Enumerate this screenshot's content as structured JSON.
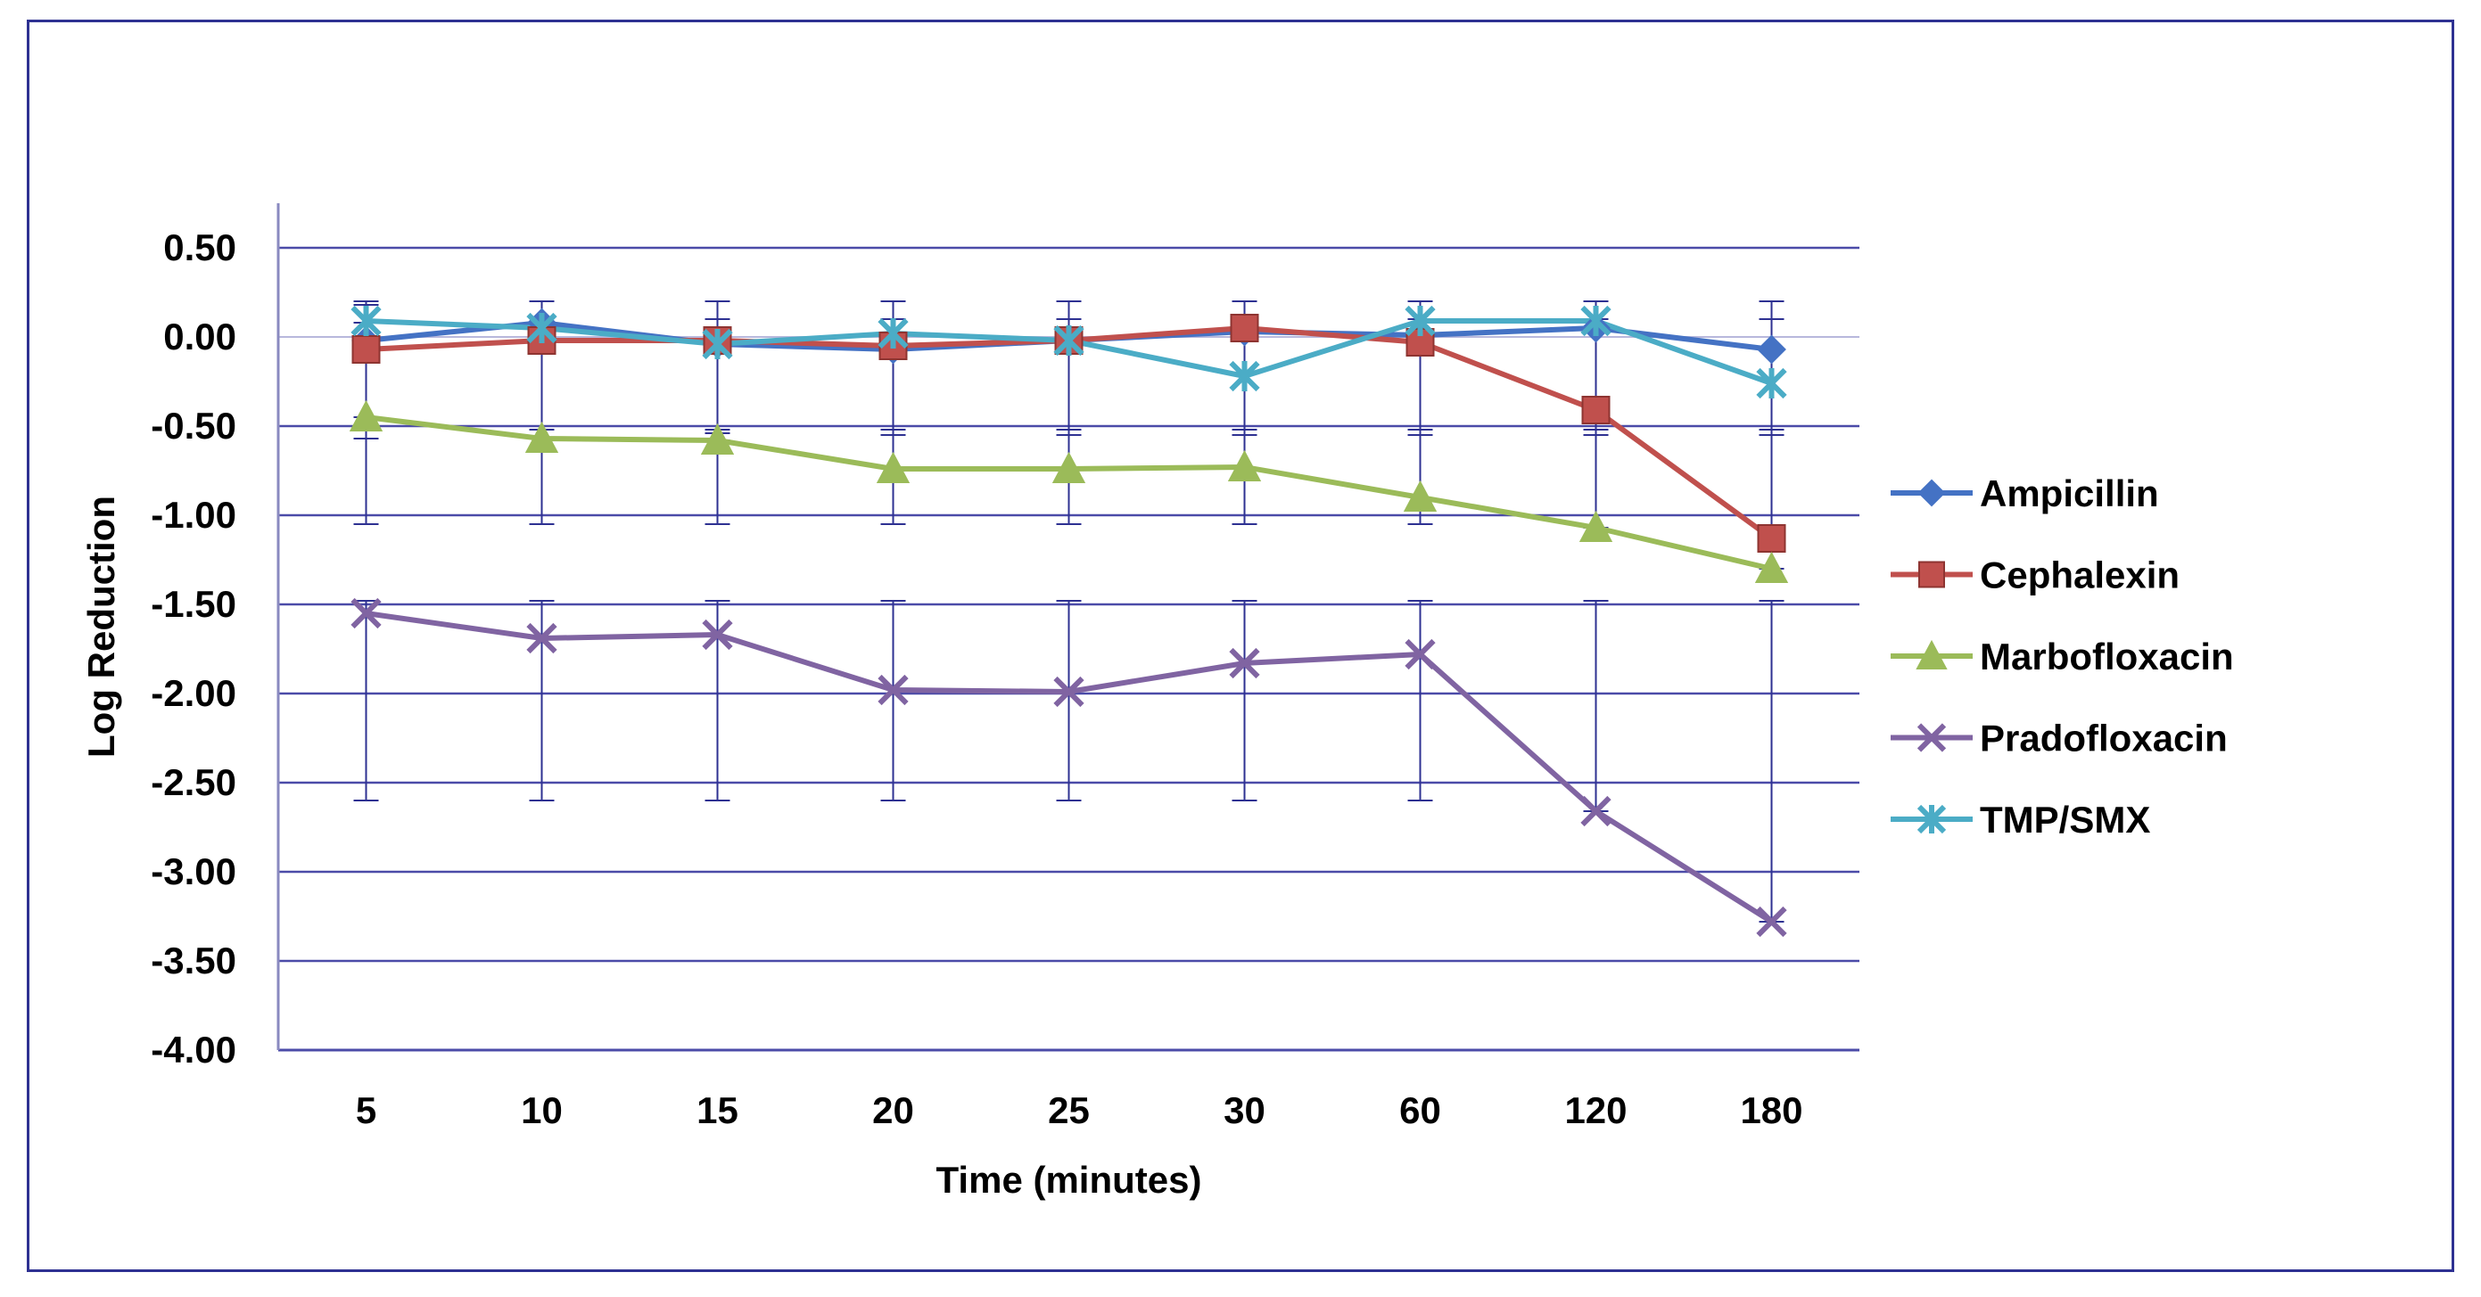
{
  "chart_data": {
    "type": "line",
    "title": "",
    "xlabel": "Time (minutes)",
    "ylabel": "Log Reduction",
    "ylim": [
      -4.0,
      0.5
    ],
    "yticks": [
      "0.50",
      "0.00",
      "-0.50",
      "-1.00",
      "-1.50",
      "-2.00",
      "-2.50",
      "-3.00",
      "-3.50",
      "-4.00"
    ],
    "ytick_values": [
      0.5,
      0.0,
      -0.5,
      -1.0,
      -1.5,
      -2.0,
      -2.5,
      -3.0,
      -3.5,
      -4.0
    ],
    "categories": [
      "5",
      "10",
      "15",
      "20",
      "25",
      "30",
      "60",
      "120",
      "180"
    ],
    "grid": true,
    "legend_position": "right",
    "series": [
      {
        "name": "Ampicillin",
        "color": "#4472c4",
        "marker": "diamond",
        "values": [
          -0.02,
          0.08,
          -0.04,
          -0.07,
          -0.02,
          0.03,
          0.01,
          0.05,
          -0.07
        ],
        "err_plus": [
          0.2,
          0.12,
          0.24,
          0.27,
          0.22,
          0.17,
          0.19,
          0.15,
          0.27
        ],
        "err_minus": [
          0.55,
          0.65,
          0.5,
          0.48,
          0.53,
          0.58,
          0.56,
          0.6,
          0.48
        ]
      },
      {
        "name": "Cephalexin",
        "color": "#c0504d",
        "marker": "square",
        "values": [
          -0.07,
          -0.02,
          -0.02,
          -0.05,
          -0.02,
          0.05,
          -0.03,
          -0.41,
          -1.13
        ],
        "err_plus": [
          0.15,
          0.1,
          0.12,
          0.15,
          0.12,
          0.05,
          0.13,
          0.51,
          1.23
        ],
        "err_minus": [
          0.45,
          0.5,
          0.5,
          0.47,
          0.5,
          0.57,
          0.49,
          0.11,
          0.0
        ]
      },
      {
        "name": "Marbofloxacin",
        "color": "#9bbb59",
        "marker": "triangle",
        "values": [
          -0.45,
          -0.57,
          -0.58,
          -0.74,
          -0.74,
          -0.73,
          -0.9,
          -1.07,
          -1.3
        ],
        "err_plus": [
          0.0,
          0.0,
          0.0,
          0.19,
          0.19,
          0.18,
          0.35,
          0.52,
          0.75
        ],
        "err_minus": [
          0.6,
          0.48,
          0.47,
          0.31,
          0.31,
          0.32,
          0.15,
          0.0,
          0.0
        ]
      },
      {
        "name": "Pradofloxacin",
        "color": "#8064a2",
        "marker": "x",
        "values": [
          -1.55,
          -1.69,
          -1.67,
          -1.98,
          -1.99,
          -1.83,
          -1.78,
          -2.66,
          -3.28
        ],
        "err_plus": [
          0.07,
          0.21,
          0.19,
          0.5,
          0.51,
          0.35,
          0.3,
          1.18,
          1.8
        ],
        "err_minus": [
          1.05,
          0.91,
          0.93,
          0.62,
          0.61,
          0.77,
          0.82,
          0.0,
          0.0
        ]
      },
      {
        "name": "TMP/SMX",
        "color": "#4bacc6",
        "marker": "star",
        "values": [
          0.09,
          0.05,
          -0.04,
          0.02,
          -0.02,
          -0.22,
          0.09,
          0.09,
          -0.26
        ],
        "err_plus": [
          0.11,
          0.15,
          0.24,
          0.18,
          0.22,
          0.42,
          0.11,
          0.11,
          0.46
        ],
        "err_minus": [
          0.61,
          0.57,
          0.48,
          0.54,
          0.5,
          0.3,
          0.61,
          0.61,
          0.26
        ]
      }
    ]
  }
}
